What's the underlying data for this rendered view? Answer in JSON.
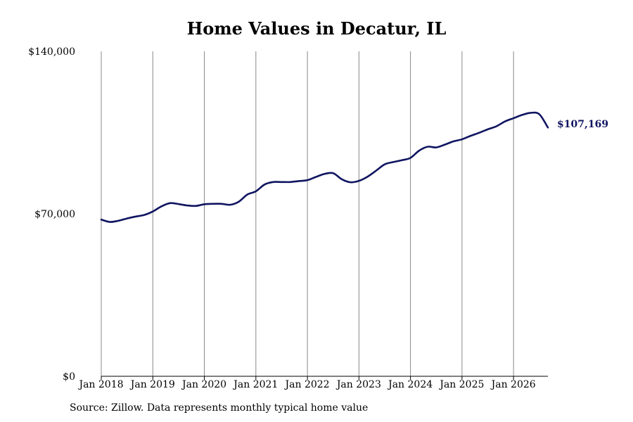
{
  "source_note": "Source: Zillow. Data represents monthly typical home value",
  "colors": {
    "line": "#0f1460",
    "grid": "#888888",
    "axis": "#000000"
  },
  "chart_data": {
    "type": "line",
    "title": "Home Values in Decatur, IL",
    "xlabel": "",
    "ylabel": "",
    "ylim": [
      0,
      140000
    ],
    "xlim": [
      "2018-01",
      "2026-09"
    ],
    "grid": "vertical",
    "y_ticks": [
      {
        "value": 0,
        "label": "$0"
      },
      {
        "value": 70000,
        "label": "$70,000"
      },
      {
        "value": 140000,
        "label": "$140,000"
      }
    ],
    "x_ticks": [
      {
        "value": "2018-01",
        "label": "Jan 2018"
      },
      {
        "value": "2019-01",
        "label": "Jan 2019"
      },
      {
        "value": "2020-01",
        "label": "Jan 2020"
      },
      {
        "value": "2021-01",
        "label": "Jan 2021"
      },
      {
        "value": "2022-01",
        "label": "Jan 2022"
      },
      {
        "value": "2023-01",
        "label": "Jan 2023"
      },
      {
        "value": "2024-01",
        "label": "Jan 2024"
      },
      {
        "value": "2025-01",
        "label": "Jan 2025"
      },
      {
        "value": "2026-01",
        "label": "Jan 2026"
      }
    ],
    "end_label": "$107,169",
    "series": [
      {
        "x": [
          "2018-01",
          "2018-03",
          "2018-05",
          "2018-07",
          "2018-09",
          "2018-11",
          "2019-01",
          "2019-03",
          "2019-05",
          "2019-07",
          "2019-09",
          "2019-11",
          "2020-01",
          "2020-03",
          "2020-05",
          "2020-07",
          "2020-09",
          "2020-11",
          "2021-01",
          "2021-03",
          "2021-05",
          "2021-07",
          "2021-09",
          "2021-11",
          "2022-01",
          "2022-03",
          "2022-05",
          "2022-07",
          "2022-09",
          "2022-11",
          "2023-01",
          "2023-03",
          "2023-05",
          "2023-07",
          "2023-09",
          "2023-11",
          "2024-01",
          "2024-03",
          "2024-05",
          "2024-07",
          "2024-09",
          "2024-11",
          "2025-01",
          "2025-03",
          "2025-05",
          "2025-07",
          "2025-09",
          "2025-11",
          "2026-01",
          "2026-03",
          "2026-05",
          "2026-07",
          "2026-09"
        ],
        "values": [
          67500,
          66500,
          67000,
          68000,
          68800,
          69500,
          71000,
          73200,
          74600,
          74200,
          73600,
          73400,
          74100,
          74300,
          74300,
          73900,
          75200,
          78300,
          79700,
          82600,
          83700,
          83700,
          83700,
          84100,
          84500,
          85900,
          87200,
          87500,
          84900,
          83600,
          84200,
          86000,
          88600,
          91300,
          92300,
          93100,
          94100,
          97200,
          98900,
          98600,
          99800,
          101200,
          102100,
          103600,
          104900,
          106400,
          107700,
          109800,
          111200,
          112600,
          113500,
          112900,
          107169
        ]
      }
    ]
  }
}
